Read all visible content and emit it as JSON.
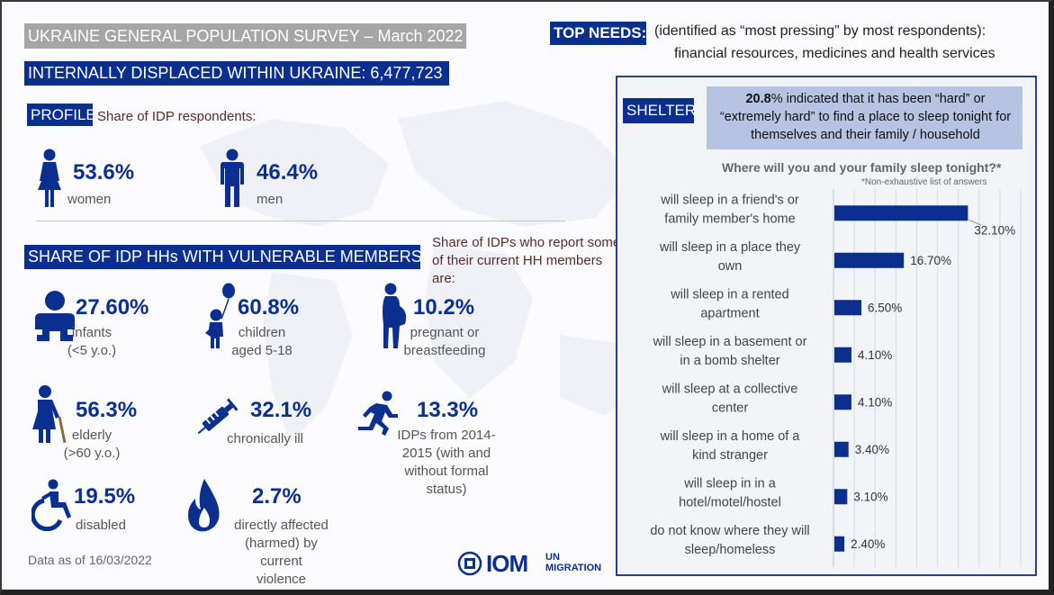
{
  "header": {
    "title": "UKRAINE GENERAL POPULATION SURVEY – March 2022",
    "idp_title": "INTERNALLY DISPLACED WITHIN UKRAINE: 6,477,723"
  },
  "profile": {
    "label": "PROFILE",
    "subtitle": "Share of IDP respondents:",
    "women": {
      "pct": "53.6%",
      "label": "women",
      "icon": "woman-icon"
    },
    "men": {
      "pct": "46.4%",
      "label": "men",
      "icon": "man-icon"
    }
  },
  "vulnerable": {
    "title": "SHARE OF IDP HHs WITH VULNERABLE MEMBERS",
    "note": "Share of IDPs who report some of their current HH members are:",
    "items": [
      {
        "pct": "27.60%",
        "label1": "infants",
        "label2": "(<5 y.o.)",
        "icon": "infant-icon"
      },
      {
        "pct": "60.8%",
        "label1": "children",
        "label2": "aged 5-18",
        "icon": "child-balloon-icon"
      },
      {
        "pct": "10.2%",
        "label1": "pregnant or",
        "label2": "breastfeeding",
        "icon": "pregnant-icon"
      },
      {
        "pct": "56.3%",
        "label1": "elderly",
        "label2": "(>60 y.o.)",
        "icon": "elderly-icon"
      },
      {
        "pct": "32.1%",
        "label1": "chronically ill",
        "label2": "",
        "icon": "syringe-icon"
      },
      {
        "pct": "13.3%",
        "label1": "IDPs from 2014-",
        "label2": "2015 (with and",
        "label3": "without formal",
        "label4": "status)",
        "icon": "running-person-icon"
      },
      {
        "pct": "19.5%",
        "label1": "disabled",
        "label2": "",
        "icon": "wheelchair-icon"
      },
      {
        "pct": "2.7%",
        "label1": "directly affected",
        "label2": "(harmed) by current",
        "label3": "violence",
        "icon": "fire-icon"
      }
    ]
  },
  "footer": {
    "date": "Data as of 16/03/2022",
    "logo_text": "IOM",
    "logo_un": "UN",
    "logo_migration": "MIGRATION"
  },
  "top_needs": {
    "label": "TOP NEEDS:",
    "line1": "(identified as “most pressing” by most respondents):",
    "line2": "financial resources, medicines and health services"
  },
  "shelter": {
    "label": "SHELTER",
    "note_pct": "20.8",
    "note_rest": "% indicated that it has been “hard” or “extremely hard” to find a place to sleep tonight for themselves and their family / household",
    "question": "Where will you and your family sleep tonight?*",
    "footnote": "*Non-exhaustive list of answers"
  },
  "colors": {
    "navy": "#0b2f8f",
    "grey_title": "#a6a6a6",
    "note_bg": "#b7c3e3"
  },
  "chart_data": {
    "type": "bar",
    "orientation": "horizontal",
    "title": "Where will you and your family sleep tonight?*",
    "categories": [
      [
        "will sleep in a friend's or",
        "family member's home"
      ],
      [
        "will sleep in a place they",
        "own"
      ],
      [
        "will sleep in a rented",
        "apartment"
      ],
      [
        "will sleep in a basement or",
        "in a bomb shelter"
      ],
      [
        "will sleep at a collective",
        "center"
      ],
      [
        "will sleep in a home of a",
        "kind stranger"
      ],
      [
        "will sleep in in a",
        "hotel/motel/hostel"
      ],
      [
        "do not know where they will",
        "sleep/homeless"
      ]
    ],
    "values": [
      32.1,
      16.7,
      6.5,
      4.1,
      4.1,
      3.4,
      3.1,
      2.4
    ],
    "value_labels": [
      "32.10%",
      "16.70%",
      "6.50%",
      "4.10%",
      "4.10%",
      "3.40%",
      "3.10%",
      "2.40%"
    ],
    "xlim": [
      0,
      45
    ],
    "grid": true,
    "bar_color": "#0b2f8f"
  }
}
